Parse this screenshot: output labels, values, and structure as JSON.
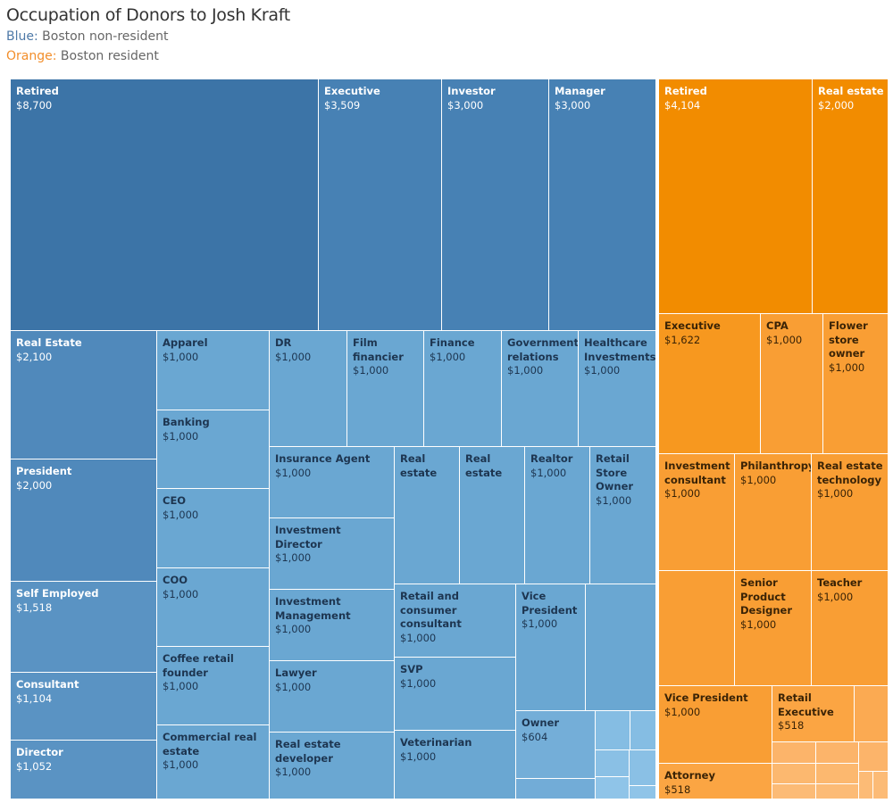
{
  "title": "Occupation of Donors to Josh Kraft",
  "legend": [
    {
      "key": "Blue:",
      "text": "Boston non-resident",
      "color": "#4e79a7"
    },
    {
      "key": "Orange:",
      "text": "Boston resident",
      "color": "#f28e2b"
    }
  ],
  "chart_data": {
    "type": "treemap",
    "title": "Occupation of Donors to Josh Kraft",
    "groups": [
      {
        "name": "Boston non-resident",
        "color": "#4e79a7",
        "cells": [
          {
            "label": "Retired",
            "value": "$8,700"
          },
          {
            "label": "Executive",
            "value": "$3,509"
          },
          {
            "label": "Investor",
            "value": "$3,000"
          },
          {
            "label": "Manager",
            "value": "$3,000"
          },
          {
            "label": "Real Estate",
            "value": "$2,100"
          },
          {
            "label": "President",
            "value": "$2,000"
          },
          {
            "label": "Self Employed",
            "value": "$1,518"
          },
          {
            "label": "Consultant",
            "value": "$1,104"
          },
          {
            "label": "Director",
            "value": "$1,052"
          },
          {
            "label": "Apparel",
            "value": "$1,000"
          },
          {
            "label": "Banking",
            "value": "$1,000"
          },
          {
            "label": "CEO",
            "value": "$1,000"
          },
          {
            "label": "COO",
            "value": "$1,000"
          },
          {
            "label": "Coffee retail founder",
            "value": "$1,000"
          },
          {
            "label": "Commercial real estate",
            "value": "$1,000"
          },
          {
            "label": "DR",
            "value": "$1,000"
          },
          {
            "label": "Film financier",
            "value": "$1,000"
          },
          {
            "label": "Finance",
            "value": "$1,000"
          },
          {
            "label": "Government relations",
            "value": "$1,000"
          },
          {
            "label": "Healthcare Investments",
            "value": "$1,000"
          },
          {
            "label": "Insurance Agent",
            "value": "$1,000"
          },
          {
            "label": "Investment Director",
            "value": "$1,000"
          },
          {
            "label": "Investment Management",
            "value": "$1,000"
          },
          {
            "label": "Lawyer",
            "value": "$1,000"
          },
          {
            "label": "Real estate developer",
            "value": "$1,000"
          },
          {
            "label": "Real estate",
            "value": null
          },
          {
            "label": "Real estate",
            "value": null
          },
          {
            "label": "Realtor",
            "value": "$1,000"
          },
          {
            "label": "Retail Store Owner",
            "value": "$1,000"
          },
          {
            "label": "Retail and consumer consultant",
            "value": "$1,000"
          },
          {
            "label": "SVP",
            "value": "$1,000"
          },
          {
            "label": "Veterinarian",
            "value": "$1,000"
          },
          {
            "label": "Vice President",
            "value": "$1,000"
          },
          {
            "label": "Owner",
            "value": "$604"
          }
        ]
      },
      {
        "name": "Boston resident",
        "color": "#f28e2b",
        "cells": [
          {
            "label": "Retired",
            "value": "$4,104"
          },
          {
            "label": "Real estate",
            "value": "$2,000"
          },
          {
            "label": "Executive",
            "value": "$1,622"
          },
          {
            "label": "CPA",
            "value": "$1,000"
          },
          {
            "label": "Flower store owner",
            "value": "$1,000"
          },
          {
            "label": "Investment consultant",
            "value": "$1,000"
          },
          {
            "label": "Philanthropy",
            "value": "$1,000"
          },
          {
            "label": "Real estate technology",
            "value": "$1,000"
          },
          {
            "label": "Senior Product Designer",
            "value": "$1,000"
          },
          {
            "label": "Teacher",
            "value": "$1,000"
          },
          {
            "label": "Vice President",
            "value": "$1,000"
          },
          {
            "label": "Retail Executive",
            "value": "$518"
          },
          {
            "label": "Attorney",
            "value": "$518"
          }
        ]
      }
    ]
  }
}
